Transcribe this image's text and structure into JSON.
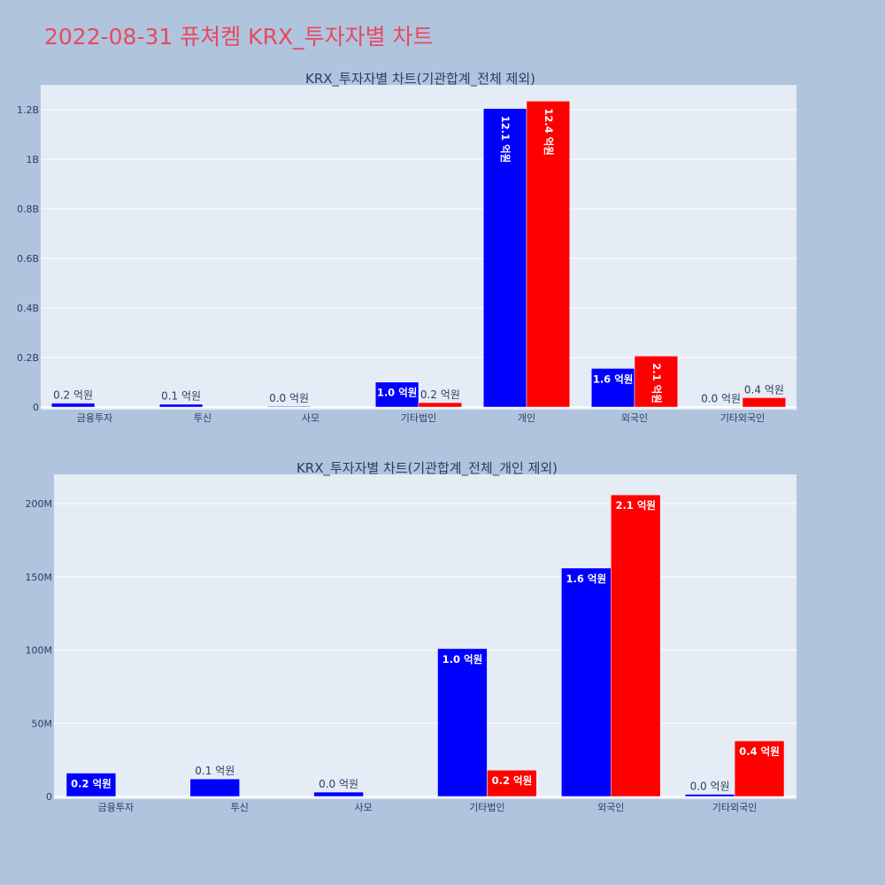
{
  "page_title": "2022-08-31 퓨쳐켐 KRX_투자자별 차트",
  "colors": {
    "series1": "#0000ff",
    "series2": "#ff0000",
    "plot_bg": "#e5ecf6",
    "page_bg": "#b0c4de",
    "title": "#e84a5f"
  },
  "chart_data": [
    {
      "type": "bar",
      "title": "KRX_투자자별 차트(기관합계_전체 제외)",
      "categories": [
        "금융투자",
        "투신",
        "사모",
        "기타법인",
        "개인",
        "외국인",
        "기타외국인"
      ],
      "series": [
        {
          "values": [
            16000000,
            12000000,
            3000000,
            101000000,
            1205000000,
            156000000,
            1500000
          ],
          "labels": [
            "0.2 억원",
            "0.1 억원",
            "0.0 억원",
            "1.0 억원",
            "12.1 억원",
            "1.6 억원",
            "0.0 억원"
          ]
        },
        {
          "values": [
            0,
            0,
            0,
            18000000,
            1235000000,
            206000000,
            38000000
          ],
          "labels": [
            "",
            "",
            "",
            "0.2 억원",
            "12.4 억원",
            "2.1 억원",
            "0.4 억원"
          ]
        }
      ],
      "ylim": [
        0,
        1300000000
      ],
      "yticks": [
        0,
        200000000,
        400000000,
        600000000,
        800000000,
        1000000000,
        1200000000
      ],
      "ytick_labels": [
        "0",
        "0.2B",
        "0.4B",
        "0.6B",
        "0.8B",
        "1B",
        "1.2B"
      ],
      "grid": true
    },
    {
      "type": "bar",
      "title": "KRX_투자자별 차트(기관합계_전체_개인 제외)",
      "categories": [
        "금융투자",
        "투신",
        "사모",
        "기타법인",
        "외국인",
        "기타외국인"
      ],
      "series": [
        {
          "values": [
            16000000,
            12000000,
            3000000,
            101000000,
            156000000,
            1500000
          ],
          "labels": [
            "0.2 억원",
            "0.1 억원",
            "0.0 억원",
            "1.0 억원",
            "1.6 억원",
            "0.0 억원"
          ]
        },
        {
          "values": [
            0,
            0,
            0,
            18000000,
            206000000,
            38000000
          ],
          "labels": [
            "",
            "",
            "",
            "0.2 억원",
            "2.1 억원",
            "0.4 억원"
          ]
        }
      ],
      "ylim": [
        0,
        220000000
      ],
      "yticks": [
        0,
        50000000,
        100000000,
        150000000,
        200000000
      ],
      "ytick_labels": [
        "0",
        "50M",
        "100M",
        "150M",
        "200M"
      ],
      "grid": true
    }
  ]
}
